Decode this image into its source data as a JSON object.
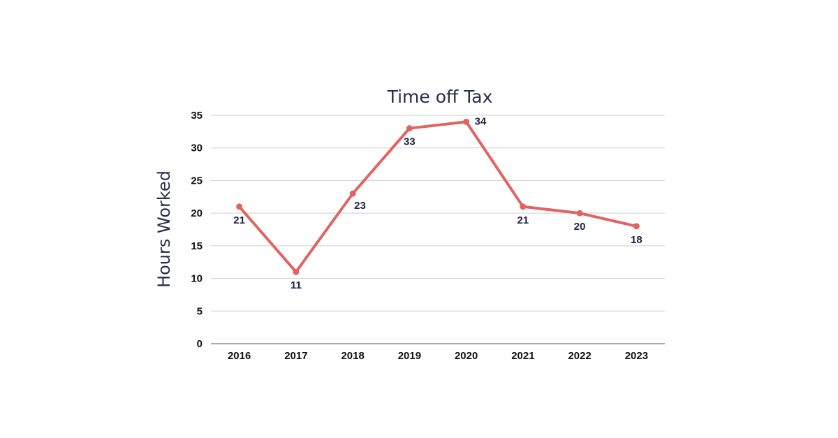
{
  "chart_data": {
    "type": "line",
    "title": "Time off Tax",
    "xlabel": "",
    "ylabel": "Hours Worked",
    "x": [
      "2016",
      "2017",
      "2018",
      "2019",
      "2020",
      "2021",
      "2022",
      "2023"
    ],
    "series": [
      {
        "values": [
          21,
          11,
          23,
          33,
          34,
          21,
          20,
          18
        ]
      }
    ],
    "ylim": [
      0,
      35
    ],
    "yticks": [
      0,
      5,
      10,
      15,
      20,
      25,
      30,
      35
    ],
    "grid": true,
    "legend": "none",
    "data_labels": true,
    "colors": {
      "line": "#df6562",
      "text": "#2b2d4a"
    }
  }
}
